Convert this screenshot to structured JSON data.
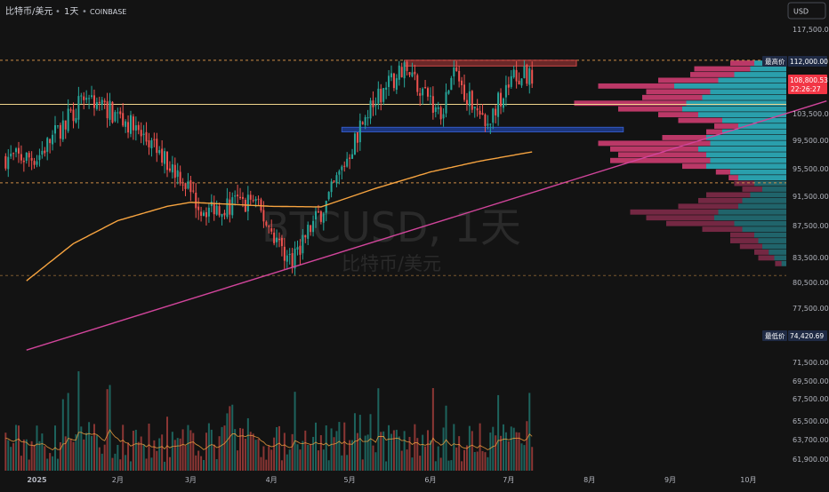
{
  "header": {
    "symbol_title": "比特币/美元",
    "interval": "1天",
    "exchange": "COINBASE",
    "separator": "•"
  },
  "watermark": {
    "ticker": "BTCUSD, 1天",
    "name": "比特币/美元"
  },
  "currency_button": "USD",
  "colors": {
    "background": "#131313",
    "up": "#26a69a",
    "down": "#ef5350",
    "moving_average": "#f7a440",
    "trendline": "#d1459b",
    "resistance_box": "#b33a3a",
    "support_box": "#1e3d8f",
    "volume_profile_up": "#2ba7b4",
    "volume_profile_down": "#c43a6c",
    "dashed_level": "#e09a4a",
    "hline": "#f0d58c"
  },
  "chart_data": {
    "type": "candlestick",
    "price_axis": {
      "labels": [
        "117,500.00",
        "103,500.00",
        "99,500.00",
        "95,500.00",
        "91,500.00",
        "87,500.00",
        "83,500.00",
        "80,500.00",
        "77,500.00",
        "71,500.00",
        "69,500.00",
        "67,500.00",
        "65,500.00",
        "63,700.00",
        "61,900.00"
      ],
      "values": [
        117500,
        103500,
        99500,
        95500,
        91500,
        87500,
        83500,
        80500,
        77500,
        71500,
        69500,
        67500,
        65500,
        63700,
        61900
      ]
    },
    "time_axis": {
      "labels": [
        "2025",
        "2月",
        "3月",
        "4月",
        "5月",
        "6月",
        "7月",
        "8月",
        "9月",
        "10月"
      ],
      "dates": [
        "2025-01-01",
        "2025-02-01",
        "2025-03-01",
        "2025-04-01",
        "2025-05-01",
        "2025-06-01",
        "2025-07-01",
        "2025-08-01",
        "2025-09-01",
        "2025-10-01"
      ]
    },
    "markers": {
      "high": {
        "label": "最高价",
        "value": "112,000.00"
      },
      "low": {
        "label": "最低价",
        "value": "74,420.69"
      },
      "last": {
        "value": "108,800.53",
        "countdown": "22:26:27"
      }
    },
    "levels": {
      "dashed_high": 112000,
      "dashed_mid": 90600,
      "dashed_low": 74420.69,
      "horizontal": 104300
    },
    "zones": {
      "resistance": {
        "from": "2025-05-22",
        "to": "2025-07-27",
        "low": 111000,
        "high": 112000
      },
      "support": {
        "from": "2025-04-28",
        "to": "2025-08-14",
        "low": 99500,
        "high": 100300
      }
    },
    "trendline": {
      "start": {
        "date": "2024-12-28",
        "value": 61400
      },
      "end": {
        "date": "2025-10-31",
        "value": 104900
      }
    },
    "anchors": [
      {
        "date": "2025-01-01",
        "value": 95000
      },
      {
        "date": "2025-01-20",
        "value": 106000
      },
      {
        "date": "2025-02-05",
        "value": 101000
      },
      {
        "date": "2025-02-25",
        "value": 92000
      },
      {
        "date": "2025-03-05",
        "value": 86000
      },
      {
        "date": "2025-03-25",
        "value": 87500
      },
      {
        "date": "2025-04-08",
        "value": 77000
      },
      {
        "date": "2025-04-22",
        "value": 87000
      },
      {
        "date": "2025-05-01",
        "value": 96000
      },
      {
        "date": "2025-05-08",
        "value": 103000
      },
      {
        "date": "2025-05-22",
        "value": 111000
      },
      {
        "date": "2025-06-05",
        "value": 103000
      },
      {
        "date": "2025-06-10",
        "value": 110000
      },
      {
        "date": "2025-06-22",
        "value": 100500
      },
      {
        "date": "2025-07-03",
        "value": 109500
      },
      {
        "date": "2025-07-10",
        "value": 108800
      }
    ],
    "moving_average_anchors": [
      {
        "date": "2024-12-28",
        "value": 73500
      },
      {
        "date": "2025-01-15",
        "value": 80000
      },
      {
        "date": "2025-02-01",
        "value": 84000
      },
      {
        "date": "2025-02-20",
        "value": 86500
      },
      {
        "date": "2025-03-01",
        "value": 87200
      },
      {
        "date": "2025-04-01",
        "value": 86500
      },
      {
        "date": "2025-04-20",
        "value": 86400
      },
      {
        "date": "2025-05-10",
        "value": 89500
      },
      {
        "date": "2025-06-01",
        "value": 92500
      },
      {
        "date": "2025-06-20",
        "value": 94400
      },
      {
        "date": "2025-07-10",
        "value": 96000
      }
    ],
    "volume_profile": [
      {
        "price": 111500,
        "up": 40,
        "down": 30
      },
      {
        "price": 110500,
        "up": 45,
        "down": 70
      },
      {
        "price": 109500,
        "up": 65,
        "down": 55
      },
      {
        "price": 108500,
        "up": 85,
        "down": 75
      },
      {
        "price": 107500,
        "up": 140,
        "down": 95
      },
      {
        "price": 106500,
        "up": 95,
        "down": 80
      },
      {
        "price": 105500,
        "up": 105,
        "down": 75
      },
      {
        "price": 104500,
        "up": 125,
        "down": 140
      },
      {
        "price": 103500,
        "up": 130,
        "down": 80
      },
      {
        "price": 102500,
        "up": 110,
        "down": 50
      },
      {
        "price": 101500,
        "up": 80,
        "down": 55
      },
      {
        "price": 100500,
        "up": 60,
        "down": 30
      },
      {
        "price": 99500,
        "up": 80,
        "down": 20
      },
      {
        "price": 98500,
        "up": 100,
        "down": 55
      },
      {
        "price": 97500,
        "up": 95,
        "down": 140
      },
      {
        "price": 96500,
        "up": 110,
        "down": 110
      },
      {
        "price": 95500,
        "up": 100,
        "down": 110
      },
      {
        "price": 94500,
        "up": 95,
        "down": 125
      },
      {
        "price": 93500,
        "up": 100,
        "down": 30
      },
      {
        "price": 92500,
        "up": 70,
        "down": 18
      },
      {
        "price": 91500,
        "up": 60,
        "down": 12
      },
      {
        "price": 90500,
        "up": 40,
        "down": 25
      },
      {
        "price": 89500,
        "up": 30,
        "down": 25
      },
      {
        "price": 88500,
        "up": 45,
        "down": 55
      },
      {
        "price": 87500,
        "up": 55,
        "down": 55
      },
      {
        "price": 86500,
        "up": 60,
        "down": 75
      },
      {
        "price": 85500,
        "up": 85,
        "down": 110
      },
      {
        "price": 84500,
        "up": 90,
        "down": 85
      },
      {
        "price": 83500,
        "up": 65,
        "down": 85
      },
      {
        "price": 82500,
        "up": 55,
        "down": 50
      },
      {
        "price": 81500,
        "up": 40,
        "down": 30
      },
      {
        "price": 80500,
        "up": 35,
        "down": 35
      },
      {
        "price": 79500,
        "up": 30,
        "down": 28
      },
      {
        "price": 78500,
        "up": 22,
        "down": 18
      },
      {
        "price": 77500,
        "up": 15,
        "down": 20
      },
      {
        "price": 76500,
        "up": 6,
        "down": 8
      }
    ]
  }
}
